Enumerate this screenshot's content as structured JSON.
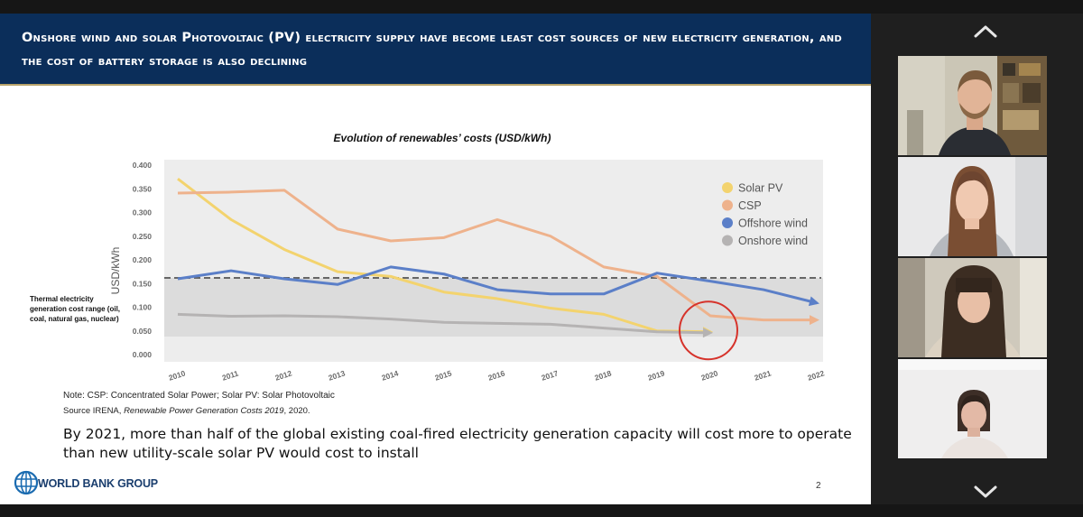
{
  "slide": {
    "title": "Onshore wind and solar Photovoltaic (PV) electricity supply have become least cost sources of new electricity generation, and the cost of battery storage is also declining",
    "note": "Note: CSP: Concentrated Solar Power; Solar PV: Solar Photovoltaic",
    "source_prefix": "Source IRENA, ",
    "source_italic": "Renewable Power Generation Costs 2019",
    "source_suffix": ", 2020.",
    "caption": "By 2021, more than half of the global existing coal-fired electricity generation capacity will cost more to operate than new utility-scale solar PV would cost to install",
    "thermal_label": "Thermal electricity generation cost range (oil, coal, natural gas, nuclear)",
    "logo_text": "WORLD BANK GROUP",
    "page_number": "2"
  },
  "chart_data": {
    "type": "line",
    "title": "Evolution of renewables’ costs (USD/kWh)",
    "ylabel": "USD/kWh",
    "xlabel": "",
    "ylim": [
      0,
      0.4
    ],
    "yticks": [
      "0.000",
      "0.050",
      "0.100",
      "0.150",
      "0.200",
      "0.250",
      "0.300",
      "0.350",
      "0.400"
    ],
    "x": [
      "2010",
      "2011",
      "2012",
      "2013",
      "2014",
      "2015",
      "2016",
      "2017",
      "2018",
      "2019",
      "2020",
      "2021",
      "2022"
    ],
    "series": [
      {
        "name": "Solar PV",
        "color": "#f3d36e",
        "values": [
          0.371,
          0.285,
          0.222,
          0.175,
          0.165,
          0.132,
          0.118,
          0.098,
          0.085,
          0.05,
          0.048,
          null,
          null
        ]
      },
      {
        "name": "CSP",
        "color": "#eeb28c",
        "values": [
          0.341,
          0.343,
          0.347,
          0.265,
          0.24,
          0.247,
          0.285,
          0.25,
          0.185,
          0.165,
          0.082,
          0.073,
          0.073
        ]
      },
      {
        "name": "Offshore wind",
        "color": "#5b7fc8",
        "values": [
          0.16,
          0.177,
          0.16,
          0.148,
          0.185,
          0.17,
          0.137,
          0.128,
          0.128,
          0.172,
          0.155,
          0.137,
          0.109
        ]
      },
      {
        "name": "Onshore wind",
        "color": "#b5b3b3",
        "values": [
          0.085,
          0.081,
          0.082,
          0.08,
          0.075,
          0.068,
          0.066,
          0.064,
          0.056,
          0.048,
          0.046,
          null,
          null
        ]
      }
    ],
    "thermal_range": [
      0.038,
      0.162
    ],
    "annotation": "red circle highlighting 2020"
  },
  "panel": {
    "up_icon": "chevron-up-icon",
    "down_icon": "chevron-down-icon",
    "participant_count": 4
  }
}
